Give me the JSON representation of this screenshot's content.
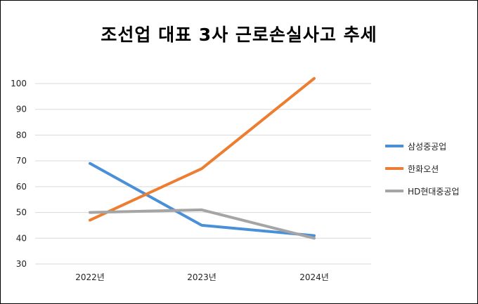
{
  "chart_data": {
    "type": "line",
    "title": "조선업 대표 3사 근로손실사고 추세",
    "categories": [
      "2022년",
      "2023년",
      "2024년"
    ],
    "ylim": [
      30,
      100
    ],
    "yticks": [
      30,
      40,
      50,
      60,
      70,
      80,
      90,
      100
    ],
    "grid": true,
    "legend_position": "right",
    "series": [
      {
        "name": "삼성중공업",
        "color": "#4a90d9",
        "values": [
          69,
          45,
          41
        ]
      },
      {
        "name": "한화오션",
        "color": "#ed7d31",
        "values": [
          47,
          67,
          102
        ]
      },
      {
        "name": "HD현대중공업",
        "color": "#a5a5a5",
        "values": [
          50,
          51,
          40
        ]
      }
    ]
  }
}
